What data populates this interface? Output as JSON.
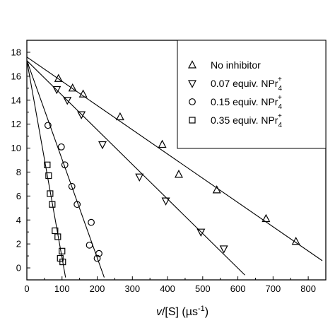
{
  "chart_data": {
    "type": "scatter",
    "xlabel": "v/[S] (µs⁻¹)",
    "ylabel": "",
    "x_ticks": [
      0,
      100,
      200,
      300,
      400,
      500,
      600,
      700,
      800
    ],
    "y_ticks": [
      0,
      2,
      4,
      6,
      8,
      10,
      12,
      14,
      16,
      18
    ],
    "xlim": [
      0,
      850
    ],
    "ylim": [
      -1.0,
      19.0
    ],
    "grid": false,
    "legend_position": "top-right",
    "series": [
      {
        "name": "No inhibitor",
        "marker": "triangle-up",
        "points": [
          [
            90,
            15.8
          ],
          [
            130,
            15.0
          ],
          [
            160,
            14.5
          ],
          [
            265,
            12.6
          ],
          [
            385,
            10.3
          ],
          [
            432,
            7.8
          ],
          [
            540,
            6.5
          ],
          [
            680,
            4.1
          ],
          [
            765,
            2.2
          ]
        ],
        "fit": [
          [
            0,
            17.6
          ],
          [
            840,
            0.6
          ]
        ]
      },
      {
        "name": "0.07 equiv. NPr4+",
        "label_main": "0.07 equiv. NPr",
        "label_sub": "4",
        "label_sup": "+",
        "marker": "triangle-down",
        "points": [
          [
            85,
            14.9
          ],
          [
            115,
            14.0
          ],
          [
            155,
            12.8
          ],
          [
            215,
            10.3
          ],
          [
            320,
            7.6
          ],
          [
            395,
            5.6
          ],
          [
            495,
            3.0
          ],
          [
            560,
            1.6
          ]
        ],
        "fit": [
          [
            0,
            17.3
          ],
          [
            620,
            -0.6
          ]
        ]
      },
      {
        "name": "0.15 equiv. NPr4+",
        "label_main": "0.15 equiv. NPr",
        "label_sub": "4",
        "label_sup": "+",
        "marker": "circle",
        "points": [
          [
            60,
            11.9
          ],
          [
            98,
            10.1
          ],
          [
            108,
            8.6
          ],
          [
            128,
            6.8
          ],
          [
            143,
            5.3
          ],
          [
            183,
            3.8
          ],
          [
            178,
            1.9
          ],
          [
            205,
            1.2
          ],
          [
            200,
            0.8
          ]
        ],
        "fit": [
          [
            0,
            17.3
          ],
          [
            220,
            -0.8
          ]
        ]
      },
      {
        "name": "0.35 equiv. NPr4+",
        "label_main": "0.35 equiv. NPr",
        "label_sub": "4",
        "label_sup": "+",
        "marker": "square",
        "points": [
          [
            58,
            8.6
          ],
          [
            62,
            7.7
          ],
          [
            66,
            6.2
          ],
          [
            72,
            5.3
          ],
          [
            80,
            3.1
          ],
          [
            88,
            2.6
          ],
          [
            100,
            1.4
          ],
          [
            95,
            0.8
          ],
          [
            102,
            0.5
          ]
        ],
        "fit": [
          [
            0,
            17.3
          ],
          [
            110,
            -0.8
          ]
        ]
      }
    ]
  }
}
